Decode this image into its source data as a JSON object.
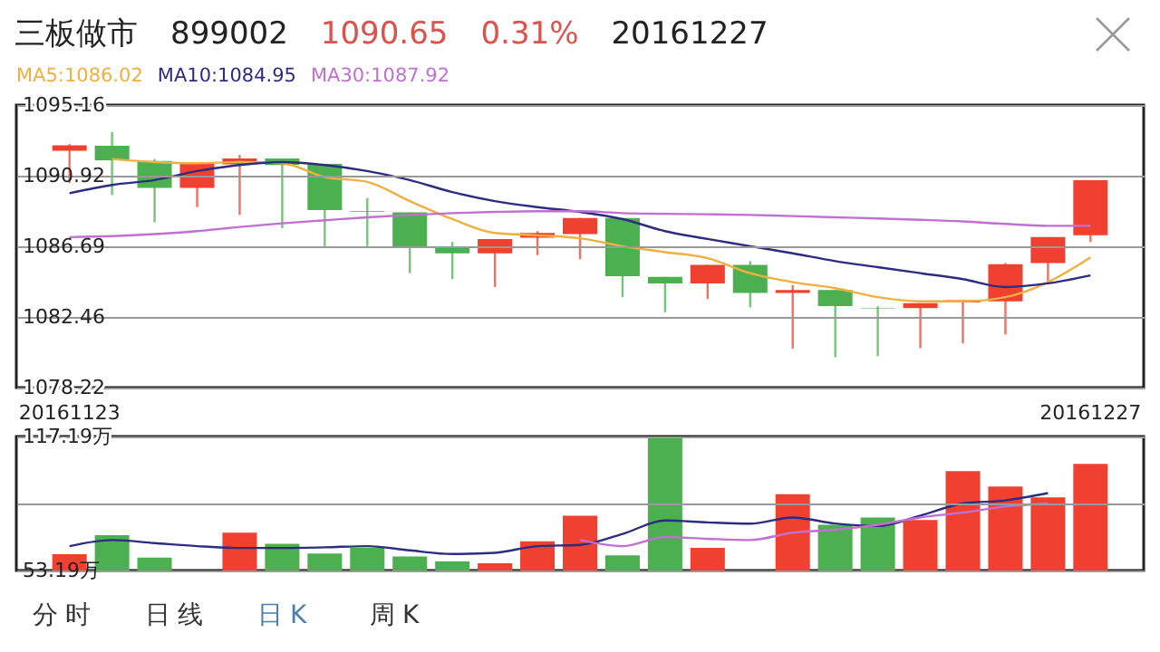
{
  "chart_data": [
    {
      "type": "candlestick",
      "title": "三板做市",
      "annotations": [
        "899002",
        "1090.65",
        "0.31%",
        "20161227",
        "分时",
        "日线",
        "日K",
        "周K"
      ],
      "categories": [
        "20161123",
        null,
        null,
        null,
        null,
        null,
        null,
        null,
        null,
        null,
        null,
        null,
        null,
        null,
        null,
        null,
        null,
        null,
        null,
        null,
        null,
        null,
        null,
        null,
        "20161227"
      ],
      "ohlc": [
        [
          1092.42,
          1092.82,
          1090.48,
          1092.75
        ],
        [
          1092.71,
          1093.54,
          1089.76,
          1091.85
        ],
        [
          1091.81,
          1091.92,
          1088.14,
          1090.19
        ],
        [
          1090.19,
          1091.74,
          1089.04,
          1091.67
        ],
        [
          1091.6,
          1092.17,
          1088.57,
          1091.96
        ],
        [
          1091.96,
          1091.96,
          1087.78,
          1091.56
        ],
        [
          1091.63,
          1091.63,
          1086.7,
          1088.86
        ],
        [
          1088.79,
          1089.58,
          1086.7,
          1088.75
        ],
        [
          1088.72,
          1088.72,
          1085.08,
          1086.66
        ],
        [
          1086.63,
          1086.95,
          1084.72,
          1086.27
        ],
        [
          1086.27,
          1087.13,
          1084.25,
          1087.13
        ],
        [
          1087.2,
          1087.6,
          1086.16,
          1087.49
        ],
        [
          1087.42,
          1088.39,
          1085.91,
          1088.39
        ],
        [
          1088.39,
          1088.39,
          1083.64,
          1084.9
        ],
        [
          1084.86,
          1084.86,
          1082.74,
          1084.47
        ],
        [
          1084.47,
          1085.58,
          1083.53,
          1085.58
        ],
        [
          1085.58,
          1085.8,
          1083.03,
          1083.89
        ],
        [
          1083.89,
          1084.36,
          1080.56,
          1084.07
        ],
        [
          1084.07,
          1084.07,
          1080.04,
          1083.1
        ],
        [
          1082.99,
          1083.1,
          1080.11,
          1082.96
        ],
        [
          1082.99,
          1083.28,
          1080.58,
          1083.28
        ],
        [
          1083.32,
          1083.46,
          1080.87,
          1083.46
        ],
        [
          1083.39,
          1085.69,
          1081.41,
          1085.62
        ],
        [
          1085.69,
          1087.24,
          1084.47,
          1087.24
        ],
        [
          1087.35,
          1090.65,
          1086.95,
          1090.65
        ]
      ],
      "colors": [
        "#f0402f",
        "#4caf50",
        "#4caf50",
        "#f0402f",
        "#f0402f",
        "#4caf50",
        "#4caf50",
        "#4caf50",
        "#4caf50",
        "#4caf50",
        "#f0402f",
        "#f0402f",
        "#f0402f",
        "#4caf50",
        "#4caf50",
        "#f0402f",
        "#4caf50",
        "#f0402f",
        "#4caf50",
        "#4caf50",
        "#f0402f",
        "#f0402f",
        "#f0402f",
        "#f0402f",
        "#f0402f"
      ],
      "series": [
        {
          "name": "MA5:1086.02",
          "type": "line",
          "color": "#f0b040",
          "values": [
            null,
            1091.92,
            1091.74,
            1091.67,
            1091.74,
            1091.67,
            1090.84,
            1090.55,
            1089.4,
            1088.32,
            1087.49,
            1087.35,
            1087.17,
            1086.7,
            1086.34,
            1085.98,
            1085.08,
            1084.54,
            1084.18,
            1083.64,
            1083.39,
            1083.39,
            1083.64,
            1084.54,
            1086.02
          ]
        },
        {
          "name": "MA10:1084.95",
          "type": "line",
          "color": "#2c2c80",
          "values": [
            1089.87,
            1090.37,
            1090.66,
            1091.2,
            1091.56,
            1091.74,
            1091.56,
            1091.2,
            1090.66,
            1089.94,
            1089.4,
            1089.04,
            1088.75,
            1088.32,
            1087.6,
            1087.13,
            1086.7,
            1086.27,
            1085.8,
            1085.44,
            1085.08,
            1084.72,
            1084.25,
            1084.47,
            1084.95
          ]
        },
        {
          "name": "MA30:1087.92",
          "type": "line",
          "color": "#c070d0",
          "values": [
            1087.24,
            1087.3,
            1087.42,
            1087.6,
            1087.85,
            1088.07,
            1088.25,
            1088.43,
            1088.57,
            1088.68,
            1088.75,
            1088.79,
            1088.79,
            1088.68,
            1088.64,
            1088.61,
            1088.57,
            1088.5,
            1088.43,
            1088.36,
            1088.28,
            1088.18,
            1088.03,
            1087.92,
            1087.92
          ]
        }
      ],
      "ylim": [
        1078.22,
        1095.16
      ],
      "yticks": [
        1078.22,
        1082.46,
        1086.69,
        1090.92,
        1095.16
      ],
      "grid": "y"
    },
    {
      "type": "bar",
      "categories": [
        null,
        null,
        null,
        null,
        null,
        null,
        null,
        null,
        null,
        null,
        null,
        null,
        null,
        null,
        null,
        null,
        null,
        null,
        null,
        null,
        null,
        null,
        null,
        null,
        null
      ],
      "series": [
        {
          "type": "bar",
          "values": [
            61.0,
            70.07,
            59.3,
            53.19,
            71.23,
            66.0,
            61.34,
            63.96,
            59.88,
            57.56,
            56.68,
            67.16,
            79.38,
            60.47,
            117.19,
            63.96,
            53.19,
            89.57,
            75.02,
            78.51,
            77.34,
            100.62,
            93.35,
            88.11,
            104.12
          ],
          "colors": [
            "#f0402f",
            "#4caf50",
            "#4caf50",
            "#f0402f",
            "#f0402f",
            "#4caf50",
            "#4caf50",
            "#4caf50",
            "#4caf50",
            "#4caf50",
            "#f0402f",
            "#f0402f",
            "#f0402f",
            "#4caf50",
            "#4caf50",
            "#f0402f",
            "#4caf50",
            "#f0402f",
            "#4caf50",
            "#4caf50",
            "#f0402f",
            "#f0402f",
            "#f0402f",
            "#f0402f",
            "#f0402f"
          ]
        },
        {
          "type": "line",
          "color": "#2c2c80",
          "values": [
            64.83,
            67.74,
            66.29,
            64.83,
            63.96,
            63.96,
            64.25,
            64.83,
            62.79,
            61.05,
            61.63,
            64.83,
            65.41,
            70.65,
            77.05,
            76.18,
            75.6,
            78.51,
            75.6,
            74.43,
            79.38,
            85.2,
            86.66,
            90.15,
            null
          ]
        },
        {
          "type": "line",
          "color": "#c070d0",
          "values": [
            null,
            null,
            null,
            null,
            null,
            null,
            null,
            null,
            null,
            null,
            null,
            null,
            67.74,
            64.83,
            69.2,
            68.32,
            67.74,
            71.23,
            72.69,
            75.02,
            78.51,
            80.84,
            83.75,
            85.2,
            null
          ]
        }
      ],
      "ylim": [
        53.19,
        117.19
      ],
      "yticks": [
        {
          "value": 53.19,
          "label": "53.19万"
        },
        {
          "value": 85.19,
          "label": null
        },
        {
          "value": 117.19,
          "label": "117.19万"
        }
      ],
      "grid": "y",
      "tick_labels": "y"
    }
  ]
}
